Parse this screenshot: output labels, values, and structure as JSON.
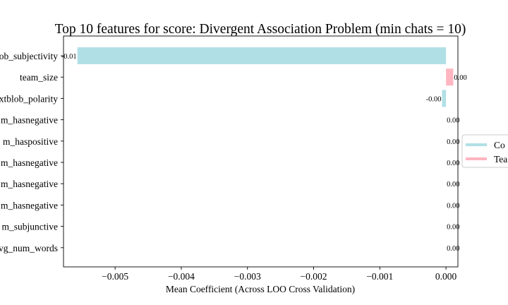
{
  "chart_data": {
    "type": "bar",
    "orientation": "horizontal",
    "title": "Top 10 features for score: Divergent Association Problem (min chats = 10)",
    "xlabel": "Mean Coefficient (Across LOO Cross Validation)",
    "ylabel": "",
    "xlim": [
      -0.00578,
      0.00018
    ],
    "x_ticks": [
      -0.005,
      -0.004,
      -0.003,
      -0.002,
      -0.001,
      0.0
    ],
    "x_tick_labels": [
      "−0.005",
      "−0.004",
      "−0.003",
      "−0.002",
      "−0.001",
      "0.000"
    ],
    "grid": false,
    "legend_position": "right",
    "categories": [
      "ob_subjectivity",
      "team_size",
      "xtblob_polarity",
      "m_hasnegative",
      "m_haspositive",
      "m_hasnegative",
      "m_hasnegative",
      "m_hasnegative",
      "m_subjunctive",
      "vg_num_words"
    ],
    "values": [
      -0.00557,
      0.00011,
      -6e-05,
      0.0,
      0.0,
      0.0,
      0.0,
      0.0,
      0.0,
      0.0
    ],
    "value_labels": [
      "-0.01",
      "0.00",
      "-0.00",
      "0.00",
      "0.00",
      "0.00",
      "0.00",
      "0.00",
      "0.00",
      "0.00"
    ],
    "bar_groups": [
      "Co",
      "Tea",
      "Co",
      "Co",
      "Co",
      "Co",
      "Co",
      "Co",
      "Co",
      "Co"
    ],
    "series": [
      {
        "name": "Co",
        "color": "#b0e0e6"
      },
      {
        "name": "Tea",
        "color": "#ffb6c1"
      }
    ],
    "legend": [
      {
        "label": "Co",
        "color": "#b0e0e6"
      },
      {
        "label": "Tea",
        "color": "#ffb6c1"
      }
    ]
  }
}
